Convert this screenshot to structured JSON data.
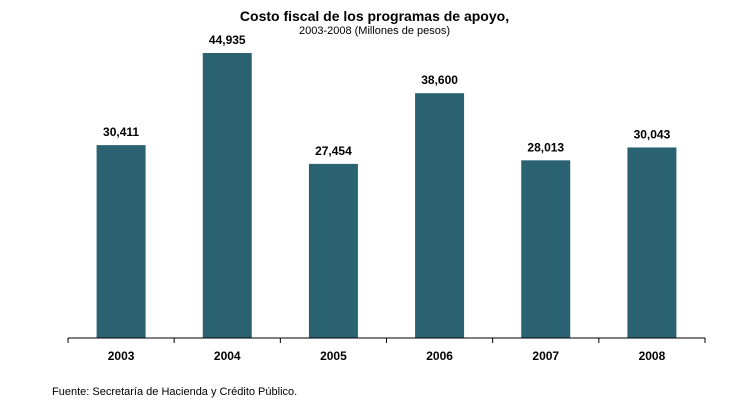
{
  "chart_data": {
    "type": "bar",
    "title": "Costo fiscal de los programas de apoyo,",
    "subtitle": "2003-2008  (Millones de pesos)",
    "categories": [
      "2003",
      "2004",
      "2005",
      "2006",
      "2007",
      "2008"
    ],
    "values": [
      30411,
      44935,
      27454,
      38600,
      28013,
      30043
    ],
    "value_labels": [
      "30,411",
      "44,935",
      "27,454",
      "38,600",
      "28,013",
      "30,043"
    ],
    "ylim": [
      0,
      50000
    ],
    "grid": false,
    "legend": "none",
    "bar_color": "#2a6272"
  },
  "source": "Fuente: Secretaría  de Hacienda y Crédito Público."
}
